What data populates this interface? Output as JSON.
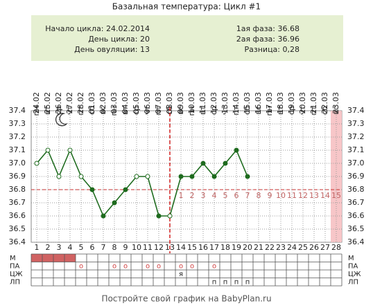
{
  "chart_data": {
    "type": "line",
    "title": "Базальная температура: Цикл #1",
    "info": {
      "left": [
        "Начало цикла: 24.02.2014",
        "День цикла: 20",
        "День овуляции: 13"
      ],
      "right": [
        "1ая фаза: 36.68",
        "2ая фаза: 36.96",
        "Разница: 0,28"
      ]
    },
    "x": [
      1,
      2,
      3,
      4,
      5,
      6,
      7,
      8,
      9,
      10,
      11,
      12,
      13,
      14,
      15,
      16,
      17,
      18,
      19,
      20,
      21,
      22,
      23,
      24,
      25,
      26,
      27,
      28
    ],
    "dates": [
      "24.02",
      "25.02",
      "26.02",
      "27.02",
      "28.02",
      "01.03",
      "02.03",
      "03.03",
      "04.03",
      "05.03",
      "06.03",
      "07.03",
      "08.03",
      "09.03",
      "10.03",
      "11.03",
      "12.03",
      "13.03",
      "14.03",
      "15.03",
      "16.03",
      "17.03",
      "18.03",
      "19.03",
      "20.03",
      "21.03",
      "22.03",
      "23.03"
    ],
    "weekdays": [
      "пн",
      "вт",
      "ср",
      "чт",
      "пт",
      "сб",
      "вс",
      "пн",
      "вт",
      "ср",
      "чт",
      "пт",
      "сб",
      "вс",
      "пн",
      "вт",
      "ср",
      "чт",
      "пт",
      "сб",
      "вс",
      "пн",
      "вт",
      "ср",
      "чт",
      "пт",
      "сб",
      "вс"
    ],
    "series": [
      {
        "color": "#1e6b1e",
        "values": [
          37.0,
          37.1,
          36.9,
          37.1,
          36.9,
          36.8,
          36.6,
          36.7,
          36.8,
          36.9,
          36.9,
          36.6,
          36.6,
          36.9,
          36.9,
          37.0,
          36.9,
          37.0,
          37.1,
          36.9,
          null,
          null,
          null,
          null,
          null,
          null,
          null,
          null
        ],
        "open_markers": [
          true,
          true,
          true,
          true,
          true,
          false,
          false,
          false,
          false,
          true,
          true,
          false,
          true,
          false,
          false,
          false,
          false,
          false,
          false,
          false,
          false,
          false,
          false,
          false,
          false,
          false,
          false,
          false
        ]
      }
    ],
    "ylim": [
      36.4,
      37.4
    ],
    "yticks": [
      36.4,
      36.5,
      36.6,
      36.7,
      36.8,
      36.9,
      {
        "value": 37,
        "label": "37.0"
      },
      37.1,
      37.2,
      37.3,
      37.4
    ],
    "coverline": 36.8,
    "ovulation_day": 13,
    "phase2_labels": [
      1,
      2,
      3,
      4,
      5,
      6,
      7,
      8,
      9,
      10,
      11,
      12,
      13,
      14,
      15
    ],
    "highlight_day": 28,
    "grid": true,
    "table": [
      {
        "label": "М",
        "days": [
          1,
          2,
          3,
          4
        ],
        "color": "#d06262"
      },
      {
        "label": "ПА",
        "days": [
          5,
          8,
          9,
          11,
          12,
          14,
          15,
          17
        ],
        "symbol": "о"
      },
      {
        "label": "ЦЖ",
        "days": [
          14
        ],
        "symbol": "я"
      },
      {
        "label": "ЛП",
        "days": [
          17,
          18,
          19,
          20
        ],
        "symbol": "п"
      }
    ],
    "footer": "Постройте свой график на BabyPlan.ru"
  }
}
